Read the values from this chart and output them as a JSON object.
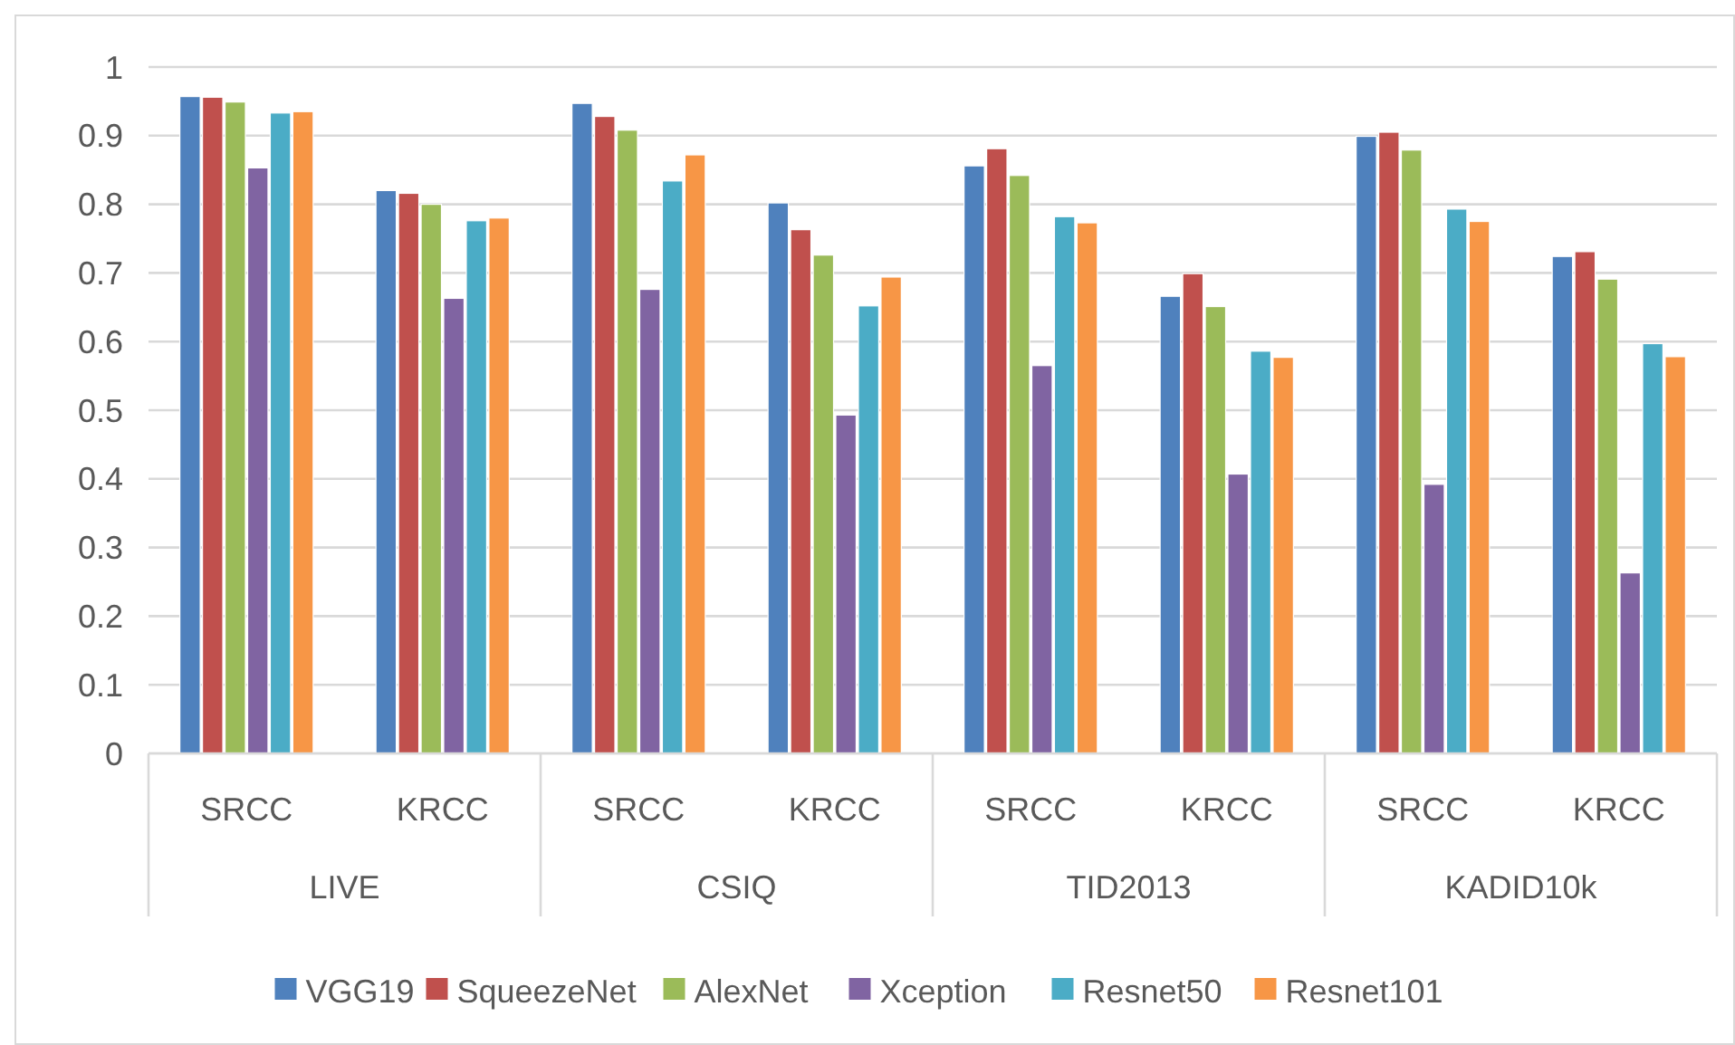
{
  "chart_data": {
    "type": "bar",
    "categories": [
      "SRCC",
      "KRCC",
      "SRCC",
      "KRCC",
      "SRCC",
      "KRCC",
      "SRCC",
      "KRCC"
    ],
    "annotations": [
      "LIVE",
      "CSIQ",
      "TID2013",
      "KADID10k"
    ],
    "series": [
      {
        "name": "VGG19",
        "color": "#4f81bd",
        "values": [
          0.957,
          0.82,
          0.947,
          0.802,
          0.856,
          0.666,
          0.899,
          0.724
        ]
      },
      {
        "name": "SqueezeNet",
        "color": "#c0504d",
        "values": [
          0.956,
          0.816,
          0.928,
          0.763,
          0.881,
          0.699,
          0.905,
          0.731
        ]
      },
      {
        "name": "AlexNet",
        "color": "#9bbb59",
        "values": [
          0.949,
          0.8,
          0.908,
          0.726,
          0.842,
          0.651,
          0.879,
          0.691
        ]
      },
      {
        "name": "Xception",
        "color": "#8064a2",
        "values": [
          0.853,
          0.663,
          0.676,
          0.493,
          0.565,
          0.407,
          0.392,
          0.263
        ]
      },
      {
        "name": "Resnet50",
        "color": "#4bacc6",
        "values": [
          0.933,
          0.776,
          0.834,
          0.652,
          0.782,
          0.586,
          0.793,
          0.597
        ]
      },
      {
        "name": "Resnet101",
        "color": "#f79646",
        "values": [
          0.935,
          0.78,
          0.872,
          0.694,
          0.773,
          0.577,
          0.775,
          0.578
        ]
      }
    ],
    "ylim": [
      0,
      1
    ],
    "yticks": [
      0,
      0.1,
      0.2,
      0.3,
      0.4,
      0.5,
      0.6,
      0.7,
      0.8,
      0.9,
      1
    ],
    "grid": "y",
    "legend": "bottom"
  }
}
